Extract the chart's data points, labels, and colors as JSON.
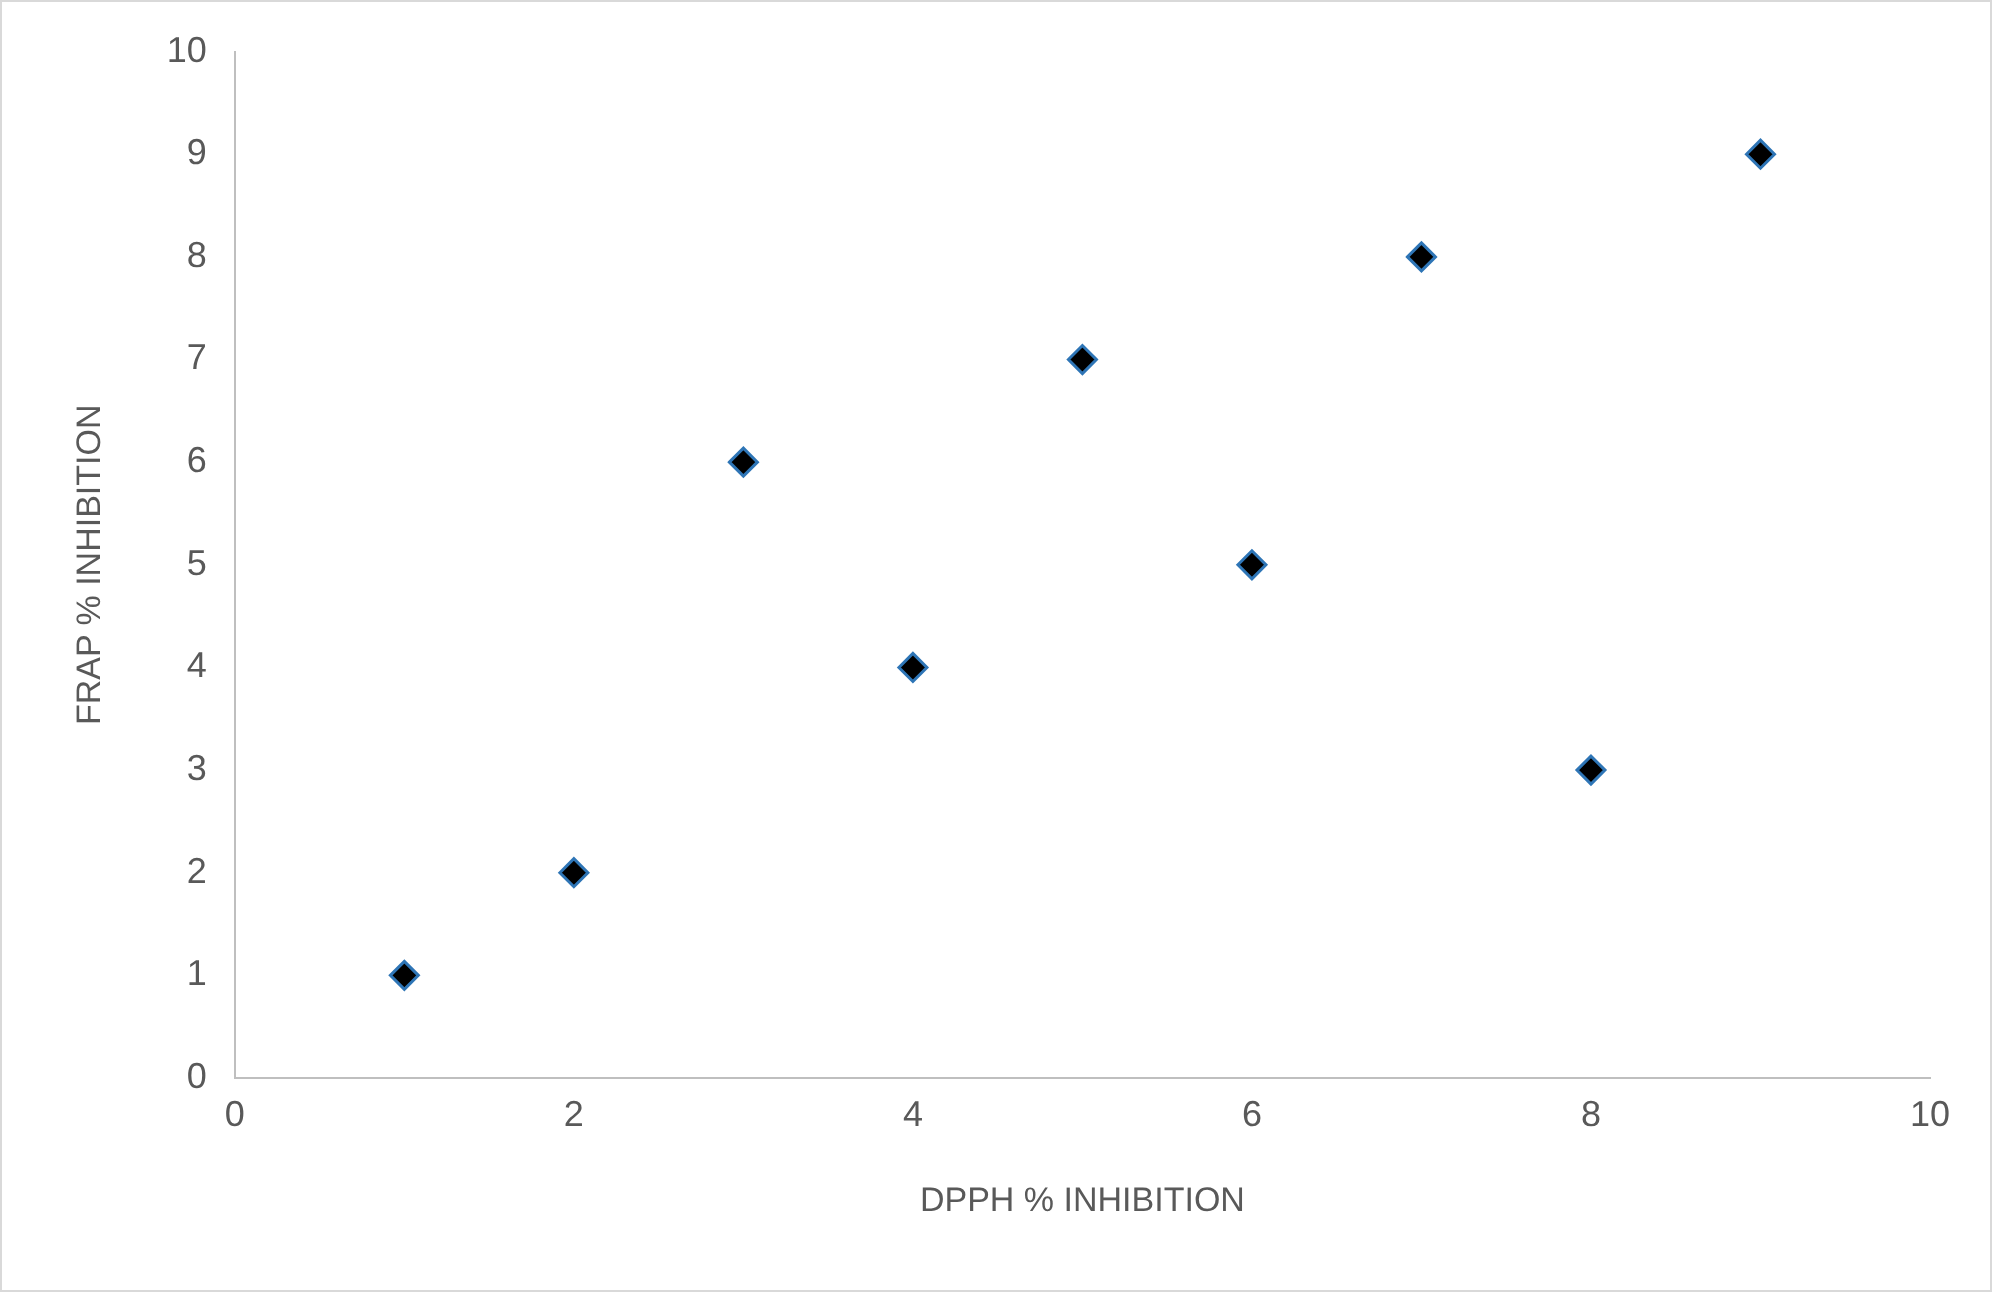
{
  "chart_data": {
    "type": "scatter",
    "xlabel": "DPPH % INHIBITION",
    "ylabel": "FRAP % INHIBITION",
    "x": [
      1,
      2,
      3,
      4,
      5,
      6,
      7,
      8,
      9
    ],
    "series": [
      {
        "color": "#000000",
        "values": [
          1,
          2,
          6,
          4,
          7,
          5,
          8,
          3,
          9
        ]
      }
    ],
    "xlim": [
      0,
      10
    ],
    "xticks": [
      0,
      2,
      4,
      6,
      8,
      10
    ],
    "ylim": [
      0,
      10
    ],
    "yticks": [
      0,
      1,
      2,
      3,
      4,
      5,
      6,
      7,
      8,
      9,
      10
    ],
    "marker": "diamond",
    "legend": false
  }
}
